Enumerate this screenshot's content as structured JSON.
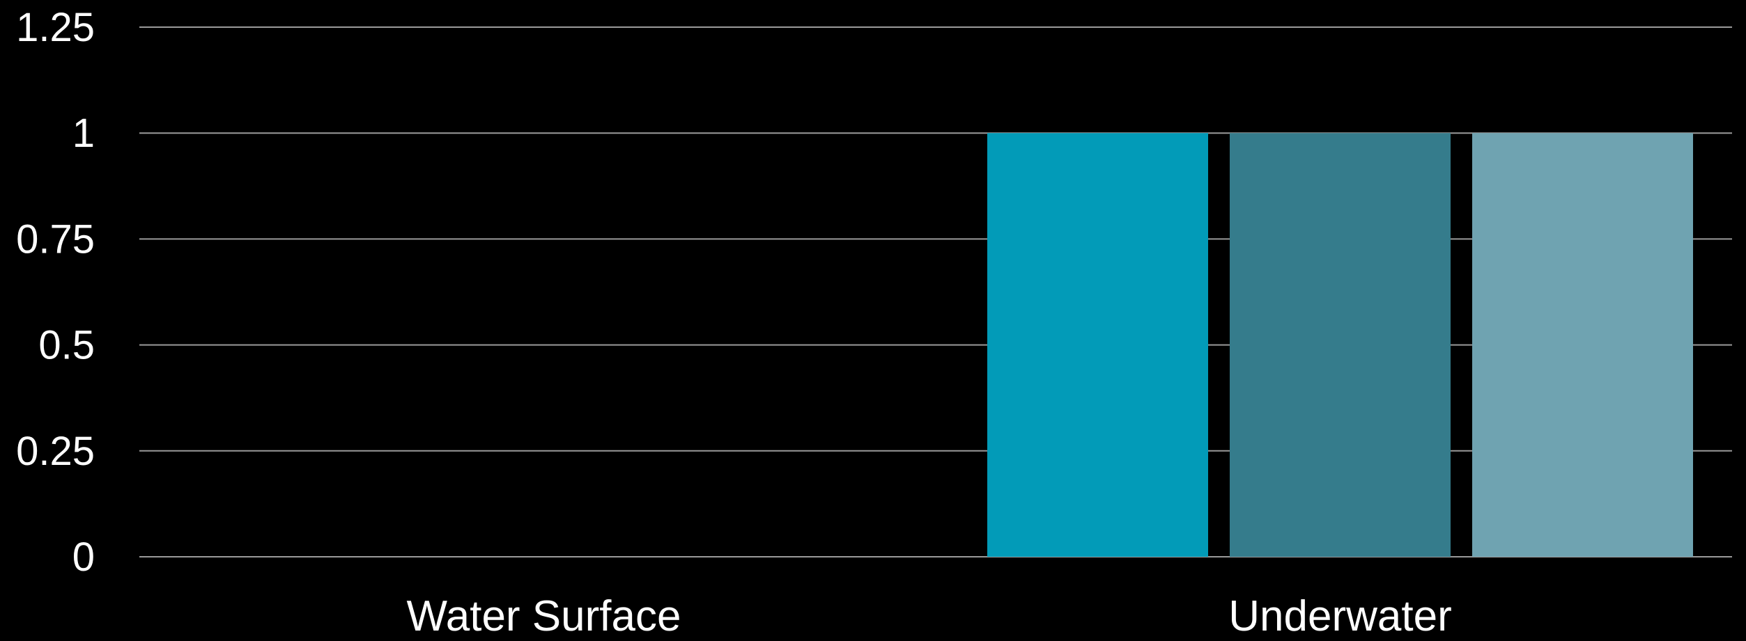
{
  "chart_data": {
    "type": "bar",
    "categories": [
      "Water Surface",
      "Underwater"
    ],
    "series": [
      {
        "color": "#029bb8",
        "values": [
          0,
          1
        ]
      },
      {
        "color": "#357c8c",
        "values": [
          0,
          1
        ]
      },
      {
        "color": "#6fa3b1",
        "values": [
          0,
          1
        ]
      }
    ],
    "ylim": [
      0,
      1.25
    ],
    "yticks": [
      "0",
      "0.25",
      "0.5",
      "0.75",
      "1",
      "1.25"
    ],
    "ytick_values": [
      0,
      0.25,
      0.5,
      0.75,
      1,
      1.25
    ],
    "grid": true,
    "legend": "none",
    "title": "",
    "xlabel": "",
    "ylabel": ""
  },
  "colors": {
    "background": "#000000",
    "grid": "#9a9a9a",
    "text": "#ffffff"
  }
}
